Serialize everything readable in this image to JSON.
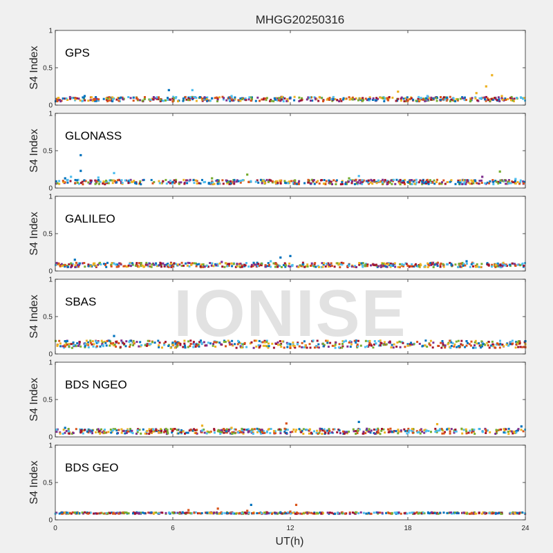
{
  "watermark": "IONISE",
  "colors": {
    "background": "#f0f0f0",
    "axes_bg": "#ffffff",
    "axis": "#262626",
    "watermark": "#d9d9d9"
  },
  "chart_data": {
    "type": "scatter",
    "title": "MHGG20250316",
    "xlabel": "UT(h)",
    "ylabel": "S4 Index",
    "xlim": [
      0,
      24
    ],
    "ylim": [
      0,
      1
    ],
    "xticks": [
      0,
      6,
      12,
      18,
      24
    ],
    "yticks": [
      0,
      0.5,
      1
    ],
    "ytick_labels": [
      "0",
      "0.5",
      "1"
    ],
    "grid": false,
    "palette": [
      "#0072BD",
      "#D95319",
      "#EDB120",
      "#7E2F8E",
      "#77AC30",
      "#4DBEEE",
      "#A2142F"
    ],
    "panels": [
      {
        "label": "GPS",
        "baseline": [
          0.05,
          0.11
        ],
        "series": [
          {
            "color": "#0072BD",
            "values": [
              [
                1.5,
                0.12
              ],
              [
                4.0,
                0.1
              ],
              [
                5.8,
                0.2
              ],
              [
                8.0,
                0.09
              ],
              [
                12.0,
                0.1
              ],
              [
                16.0,
                0.08
              ],
              [
                20.0,
                0.1
              ]
            ]
          },
          {
            "color": "#D95319",
            "values": [
              [
                2.0,
                0.07
              ],
              [
                6.0,
                0.05
              ],
              [
                10.0,
                0.06
              ],
              [
                14.0,
                0.07
              ],
              [
                18.0,
                0.06
              ],
              [
                23.0,
                0.07
              ]
            ]
          },
          {
            "color": "#EDB120",
            "values": [
              [
                17.5,
                0.18
              ],
              [
                21.5,
                0.16
              ],
              [
                22.0,
                0.25
              ],
              [
                22.3,
                0.4
              ],
              [
                22.8,
                0.12
              ]
            ]
          },
          {
            "color": "#4DBEEE",
            "values": [
              [
                7.0,
                0.2
              ],
              [
                9.0,
                0.12
              ],
              [
                13.0,
                0.1
              ],
              [
                19.0,
                0.12
              ]
            ]
          }
        ]
      },
      {
        "label": "GLONASS",
        "baseline": [
          0.05,
          0.11
        ],
        "series": [
          {
            "color": "#0072BD",
            "values": [
              [
                1.3,
                0.44
              ],
              [
                1.3,
                0.23
              ],
              [
                0.5,
                0.13
              ],
              [
                6.0,
                0.08
              ],
              [
                18.0,
                0.08
              ]
            ]
          },
          {
            "color": "#4DBEEE",
            "values": [
              [
                0.8,
                0.15
              ],
              [
                2.2,
                0.14
              ],
              [
                3.0,
                0.2
              ],
              [
                15.5,
                0.16
              ],
              [
                16.5,
                0.1
              ],
              [
                23.5,
                0.12
              ]
            ]
          },
          {
            "color": "#77AC30",
            "values": [
              [
                8.0,
                0.13
              ],
              [
                9.8,
                0.18
              ],
              [
                15.0,
                0.13
              ],
              [
                22.7,
                0.22
              ]
            ]
          },
          {
            "color": "#A2142F",
            "values": [
              [
                1.8,
                0.1
              ],
              [
                5.5,
                0.09
              ],
              [
                11.0,
                0.1
              ],
              [
                16.0,
                0.1
              ]
            ]
          },
          {
            "color": "#7E2F8E",
            "values": [
              [
                21.8,
                0.15
              ],
              [
                23.0,
                0.1
              ]
            ]
          }
        ]
      },
      {
        "label": "GALILEO",
        "baseline": [
          0.05,
          0.11
        ],
        "series": [
          {
            "color": "#0072BD",
            "values": [
              [
                1.0,
                0.15
              ],
              [
                11.5,
                0.18
              ],
              [
                12.0,
                0.2
              ],
              [
                21.0,
                0.13
              ]
            ]
          },
          {
            "color": "#D95319",
            "values": [
              [
                0.5,
                0.08
              ],
              [
                6.0,
                0.06
              ],
              [
                18.0,
                0.07
              ],
              [
                23.5,
                0.07
              ]
            ]
          },
          {
            "color": "#EDB120",
            "values": [
              [
                2.0,
                0.1
              ],
              [
                9.0,
                0.1
              ],
              [
                17.0,
                0.09
              ],
              [
                22.5,
                0.08
              ]
            ]
          },
          {
            "color": "#4DBEEE",
            "values": [
              [
                3.0,
                0.1
              ],
              [
                11.0,
                0.13
              ],
              [
                15.0,
                0.07
              ],
              [
                20.0,
                0.09
              ]
            ]
          },
          {
            "color": "#7E2F8E",
            "values": [
              [
                5.5,
                0.1
              ],
              [
                8.5,
                0.12
              ],
              [
                14.0,
                0.08
              ],
              [
                19.5,
                0.09
              ]
            ]
          }
        ]
      },
      {
        "label": "SBAS",
        "baseline": [
          0.08,
          0.18
        ],
        "series": [
          {
            "color": "#0072BD",
            "values": [
              [
                0.5,
                0.17
              ],
              [
                3.0,
                0.24
              ],
              [
                6.0,
                0.15
              ],
              [
                12.0,
                0.13
              ],
              [
                18.0,
                0.13
              ],
              [
                21.0,
                0.17
              ],
              [
                24.0,
                0.17
              ]
            ]
          },
          {
            "color": "#EDB120",
            "values": [
              [
                0.5,
                0.12
              ],
              [
                6.0,
                0.12
              ],
              [
                12.0,
                0.1
              ],
              [
                18.0,
                0.11
              ],
              [
                24.0,
                0.13
              ]
            ]
          },
          {
            "color": "#D95319",
            "values": [
              [
                0.5,
                0.1
              ],
              [
                12.0,
                0.08
              ],
              [
                24.0,
                0.09
              ]
            ]
          }
        ]
      },
      {
        "label": "BDS NGEO",
        "baseline": [
          0.04,
          0.11
        ],
        "series": [
          {
            "color": "#0072BD",
            "values": [
              [
                0.5,
                0.12
              ],
              [
                15.5,
                0.2
              ],
              [
                20.0,
                0.1
              ],
              [
                23.8,
                0.14
              ]
            ]
          },
          {
            "color": "#EDB120",
            "values": [
              [
                7.5,
                0.15
              ],
              [
                9.0,
                0.12
              ],
              [
                13.0,
                0.1
              ],
              [
                19.5,
                0.17
              ]
            ]
          },
          {
            "color": "#D95319",
            "values": [
              [
                11.8,
                0.18
              ],
              [
                14.0,
                0.08
              ],
              [
                17.0,
                0.1
              ],
              [
                22.0,
                0.08
              ]
            ]
          },
          {
            "color": "#4DBEEE",
            "values": [
              [
                5.0,
                0.1
              ],
              [
                10.0,
                0.07
              ],
              [
                18.5,
                0.06
              ]
            ]
          },
          {
            "color": "#7E2F8E",
            "values": [
              [
                3.5,
                0.08
              ],
              [
                8.5,
                0.09
              ],
              [
                16.0,
                0.07
              ]
            ]
          }
        ]
      },
      {
        "label": "BDS GEO",
        "baseline": [
          0.08,
          0.1
        ],
        "series": [
          {
            "color": "#D95319",
            "values": [
              [
                6.8,
                0.13
              ],
              [
                8.3,
                0.15
              ],
              [
                9.8,
                0.12
              ],
              [
                12.3,
                0.2
              ],
              [
                12.0,
                0.11
              ]
            ]
          },
          {
            "color": "#0072BD",
            "values": [
              [
                6.5,
                0.1
              ],
              [
                8.8,
                0.09
              ],
              [
                10.0,
                0.2
              ],
              [
                11.5,
                0.1
              ],
              [
                16.0,
                0.09
              ],
              [
                20.5,
                0.09
              ]
            ]
          }
        ]
      }
    ]
  }
}
